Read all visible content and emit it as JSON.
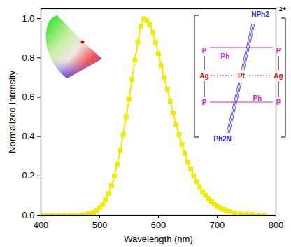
{
  "chart_data": {
    "type": "line",
    "x_label": "Wavelength (nm)",
    "y_label": "Normalized Intensity",
    "color": "#f0ec00",
    "marker": "square",
    "x": [
      400,
      410,
      420,
      430,
      440,
      450,
      460,
      470,
      480,
      485,
      490,
      495,
      500,
      505,
      510,
      515,
      520,
      525,
      530,
      535,
      540,
      545,
      550,
      555,
      560,
      565,
      570,
      575,
      580,
      585,
      590,
      595,
      600,
      605,
      610,
      615,
      620,
      625,
      630,
      635,
      640,
      645,
      650,
      655,
      660,
      665,
      670,
      675,
      680,
      685,
      690,
      695,
      700,
      705,
      710,
      715,
      720,
      730,
      740,
      750,
      760,
      770,
      780
    ],
    "values": [
      0,
      0,
      0,
      0,
      0,
      0,
      0.001,
      0.003,
      0.006,
      0.01,
      0.016,
      0.025,
      0.038,
      0.055,
      0.08,
      0.11,
      0.15,
      0.2,
      0.26,
      0.33,
      0.41,
      0.5,
      0.59,
      0.69,
      0.79,
      0.88,
      0.96,
      1.0,
      0.99,
      0.97,
      0.93,
      0.88,
      0.82,
      0.76,
      0.7,
      0.64,
      0.58,
      0.52,
      0.46,
      0.41,
      0.36,
      0.315,
      0.27,
      0.235,
      0.2,
      0.17,
      0.145,
      0.12,
      0.1,
      0.085,
      0.07,
      0.057,
      0.046,
      0.037,
      0.03,
      0.024,
      0.019,
      0.012,
      0.008,
      0.005,
      0.003,
      0.002,
      0.001
    ],
    "xlim": [
      400,
      800
    ],
    "xticks": [
      400,
      500,
      600,
      700,
      800
    ],
    "ylim": [
      0,
      1.05
    ],
    "yticks": [
      {
        "value": 0,
        "label": "0.0"
      },
      0.2,
      0.4,
      0.6,
      0.8,
      {
        "value": 1,
        "label": "1.0"
      }
    ],
    "grid": false,
    "annotations": [
      "Ag",
      "Pt",
      "Ag",
      "P",
      "P",
      "P",
      "P",
      "Ph",
      "Ph",
      "NPh2",
      "Ph2N",
      "2+"
    ]
  }
}
